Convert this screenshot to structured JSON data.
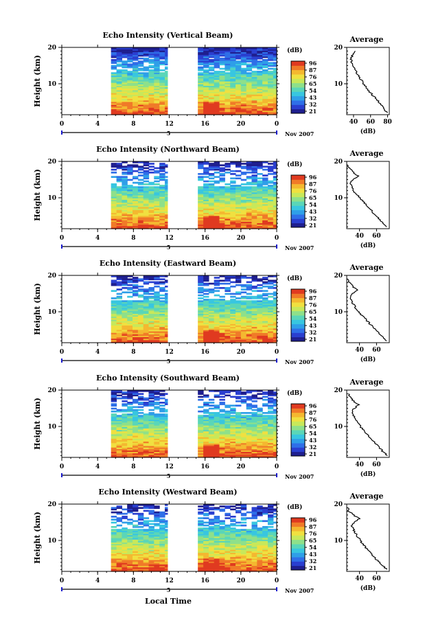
{
  "figure": {
    "xlabel": "Local Time",
    "date_label": "Nov 2007",
    "day_label": "5",
    "ylabel": "Height (km)",
    "cb_unit": "(dB)",
    "avg_title": "Average",
    "avg_xlabel": "(dB)",
    "colors": [
      "#1f1f8f",
      "#2a3fd0",
      "#2f6fe8",
      "#2f9fe8",
      "#38c6e0",
      "#5ad6b8",
      "#8ee08a",
      "#c8e85a",
      "#f0e040",
      "#f4b830",
      "#f07a28",
      "#e03a20"
    ]
  },
  "chart_data": [
    {
      "type": "heatmap",
      "title": "Echo Intensity (Vertical Beam)",
      "x_ticks": [
        "0",
        "4",
        "8",
        "12",
        "16",
        "20",
        "0"
      ],
      "y_ticks": [
        "10",
        "20"
      ],
      "xlim": [
        0,
        24
      ],
      "ylim": [
        1.5,
        20
      ],
      "cb_ticks": [
        "96",
        "87",
        "76",
        "65",
        "54",
        "43",
        "32",
        "21"
      ],
      "data_gaps_hours": [
        [
          0,
          5.5
        ],
        [
          11.8,
          15.2
        ]
      ],
      "avg_profile": {
        "x_ticks": [
          "40",
          "60",
          "80"
        ],
        "xlim": [
          32,
          82
        ],
        "y_ticks": [
          "10",
          "20"
        ],
        "height": [
          2,
          3,
          4,
          5,
          6,
          7,
          8,
          9,
          10,
          11,
          12,
          13,
          14,
          15,
          16,
          17,
          18,
          19
        ],
        "db": [
          80,
          76,
          73,
          70,
          66,
          62,
          58,
          55,
          52,
          49,
          46,
          44,
          42,
          40,
          38,
          37,
          39,
          42
        ]
      }
    },
    {
      "type": "heatmap",
      "title": "Echo Intensity (Northward Beam)",
      "x_ticks": [
        "0",
        "4",
        "8",
        "12",
        "16",
        "20",
        "0"
      ],
      "y_ticks": [
        "10",
        "20"
      ],
      "xlim": [
        0,
        24
      ],
      "ylim": [
        1.5,
        20
      ],
      "cb_ticks": [
        "96",
        "87",
        "76",
        "65",
        "54",
        "43",
        "32",
        "21"
      ],
      "data_gaps_hours": [
        [
          0,
          5.5
        ],
        [
          11.8,
          15.2
        ]
      ],
      "avg_profile": {
        "x_ticks": [
          "40",
          "60"
        ],
        "xlim": [
          25,
          75
        ],
        "y_ticks": [
          "10",
          "20"
        ],
        "height": [
          2,
          3,
          4,
          5,
          6,
          7,
          8,
          9,
          10,
          11,
          12,
          13,
          14,
          15,
          16,
          17,
          18,
          19
        ],
        "db": [
          72,
          68,
          64,
          60,
          56,
          52,
          48,
          44,
          40,
          36,
          33,
          31,
          29,
          32,
          38,
          33,
          28,
          26
        ]
      }
    },
    {
      "type": "heatmap",
      "title": "Echo Intensity (Eastward Beam)",
      "x_ticks": [
        "0",
        "4",
        "8",
        "12",
        "16",
        "20",
        "0"
      ],
      "y_ticks": [
        "10",
        "20"
      ],
      "xlim": [
        0,
        24
      ],
      "ylim": [
        1.5,
        20
      ],
      "cb_ticks": [
        "96",
        "87",
        "76",
        "65",
        "54",
        "43",
        "32",
        "21"
      ],
      "data_gaps_hours": [
        [
          0,
          5.5
        ],
        [
          11.8,
          15.2
        ]
      ],
      "avg_profile": {
        "x_ticks": [
          "40",
          "60"
        ],
        "xlim": [
          25,
          75
        ],
        "y_ticks": [
          "10",
          "20"
        ],
        "height": [
          2,
          3,
          4,
          5,
          6,
          7,
          8,
          9,
          10,
          11,
          12,
          13,
          14,
          15,
          16,
          17,
          18,
          19
        ],
        "db": [
          72,
          67,
          63,
          59,
          55,
          51,
          47,
          43,
          39,
          36,
          33,
          31,
          29,
          32,
          37,
          32,
          28,
          26
        ]
      }
    },
    {
      "type": "heatmap",
      "title": "Echo Intensity (Southward Beam)",
      "x_ticks": [
        "0",
        "4",
        "8",
        "12",
        "16",
        "20",
        "0"
      ],
      "y_ticks": [
        "10",
        "20"
      ],
      "xlim": [
        0,
        24
      ],
      "ylim": [
        1.5,
        20
      ],
      "cb_ticks": [
        "96",
        "87",
        "76",
        "65",
        "54",
        "43",
        "32",
        "21"
      ],
      "data_gaps_hours": [
        [
          0,
          5.5
        ],
        [
          11.8,
          15.2
        ]
      ],
      "avg_profile": {
        "x_ticks": [
          "40",
          "60"
        ],
        "xlim": [
          25,
          75
        ],
        "y_ticks": [
          "10",
          "20"
        ],
        "height": [
          2,
          3,
          4,
          5,
          6,
          7,
          8,
          9,
          10,
          11,
          12,
          13,
          14,
          15,
          16,
          17,
          18,
          19
        ],
        "db": [
          73,
          68,
          64,
          60,
          56,
          52,
          48,
          45,
          41,
          38,
          35,
          33,
          31,
          34,
          39,
          33,
          29,
          27
        ]
      }
    },
    {
      "type": "heatmap",
      "title": "Echo Intensity (Westward Beam)",
      "x_ticks": [
        "0",
        "4",
        "8",
        "12",
        "16",
        "20",
        "0"
      ],
      "y_ticks": [
        "10",
        "20"
      ],
      "xlim": [
        0,
        24
      ],
      "ylim": [
        1.5,
        20
      ],
      "cb_ticks": [
        "96",
        "87",
        "76",
        "65",
        "54",
        "43",
        "32",
        "21"
      ],
      "data_gaps_hours": [
        [
          0,
          5.5
        ],
        [
          11.8,
          15.2
        ]
      ],
      "avg_profile": {
        "x_ticks": [
          "40",
          "60"
        ],
        "xlim": [
          25,
          75
        ],
        "y_ticks": [
          "10",
          "20"
        ],
        "height": [
          2,
          3,
          4,
          5,
          6,
          7,
          8,
          9,
          10,
          11,
          12,
          13,
          14,
          15,
          16,
          17,
          18,
          19
        ],
        "db": [
          72,
          68,
          63,
          59,
          55,
          51,
          47,
          44,
          41,
          38,
          35,
          33,
          31,
          34,
          40,
          33,
          28,
          26
        ]
      }
    }
  ]
}
